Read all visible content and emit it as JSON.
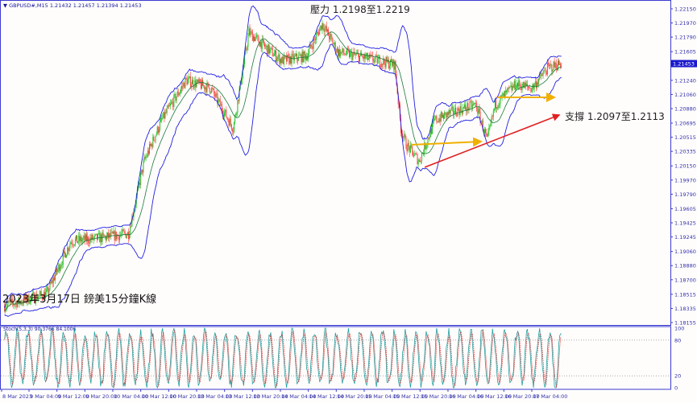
{
  "header": {
    "symbol": "GBPUSD#,M15",
    "ohlc": "1.21432 1.21457 1.21394 1.21453"
  },
  "title": "2023年3月17日 鎊美15分鐘K線",
  "annotations": {
    "resistance": "壓力 1.2198至1.2219",
    "support": "支撐 1.2097至1.2113"
  },
  "colors": {
    "bands": "#2020e0",
    "ma": "#1a7a3a",
    "up": "#20c020",
    "down": "#ff4040",
    "arrow_support": "#e02020",
    "arrow_level": "#f0b000",
    "stoch_main": "#20a0a0",
    "stoch_signal": "#e03030"
  },
  "chart_data": [
    {
      "type": "candlestick",
      "indicators": [
        "bollinger-bands",
        "moving-average"
      ],
      "y_ticks": [
        "1.22150",
        "1.21970",
        "1.21790",
        "1.21605",
        "1.21240",
        "1.21060",
        "1.20880",
        "1.20695",
        "1.20515",
        "1.20335",
        "1.20150",
        "1.19970",
        "1.19790",
        "1.19605",
        "1.19425",
        "1.19245",
        "1.19060",
        "1.18880",
        "1.18700",
        "1.18515",
        "1.18335",
        "1.18155"
      ],
      "ylim": [
        1.18155,
        1.2215
      ],
      "current_price": "1.21453",
      "x_ticks": [
        "8 Mar 2023",
        "9 Mar 04:00",
        "9 Mar 12:00",
        "9 Mar 20:00",
        "10 Mar 04:00",
        "10 Mar 12:00",
        "10 Mar 20:00",
        "13 Mar 04:00",
        "13 Mar 12:00",
        "13 Mar 20:00",
        "14 Mar 04:00",
        "14 Mar 12:00",
        "14 Mar 20:00",
        "15 Mar 04:00",
        "15 Mar 12:00",
        "15 Mar 20:00",
        "16 Mar 04:00",
        "16 Mar 12:00",
        "16 Mar 20:00",
        "17 Mar 04:00"
      ],
      "price_path": [
        {
          "time": "8 Mar 21:00",
          "price": 1.1837
        },
        {
          "time": "9 Mar 09:00",
          "price": 1.1852
        },
        {
          "time": "9 Mar 16:00",
          "price": 1.1919
        },
        {
          "time": "10 Mar 02:00",
          "price": 1.1924
        },
        {
          "time": "10 Mar 08:30",
          "price": 1.1929
        },
        {
          "time": "10 Mar 13:00",
          "price": 1.2021
        },
        {
          "time": "10 Mar 18:00",
          "price": 1.2073
        },
        {
          "time": "13 Mar 01:00",
          "price": 1.2124
        },
        {
          "time": "13 Mar 08:00",
          "price": 1.2114
        },
        {
          "time": "13 Mar 14:30",
          "price": 1.2063
        },
        {
          "time": "13 Mar 19:00",
          "price": 1.2185
        },
        {
          "time": "14 Mar 00:00",
          "price": 1.2165
        },
        {
          "time": "14 Mar 04:30",
          "price": 1.2149
        },
        {
          "time": "14 Mar 11:30",
          "price": 1.2155
        },
        {
          "time": "14 Mar 16:00",
          "price": 1.2196
        },
        {
          "time": "14 Mar 20:30",
          "price": 1.216
        },
        {
          "time": "15 Mar 08:00",
          "price": 1.2149
        },
        {
          "time": "15 Mar 12:45",
          "price": 1.2144
        },
        {
          "time": "15 Mar 14:30",
          "price": 1.2063
        },
        {
          "time": "15 Mar 16:00",
          "price": 1.2042
        },
        {
          "time": "15 Mar 19:45",
          "price": 1.2021
        },
        {
          "time": "16 Mar 00:15",
          "price": 1.2073
        },
        {
          "time": "16 Mar 05:00",
          "price": 1.2083
        },
        {
          "time": "16 Mar 12:00",
          "price": 1.2093
        },
        {
          "time": "16 Mar 15:15",
          "price": 1.2047
        },
        {
          "time": "16 Mar 17:30",
          "price": 1.2093
        },
        {
          "time": "16 Mar 23:30",
          "price": 1.2119
        },
        {
          "time": "17 Mar 04:00",
          "price": 1.2114
        },
        {
          "time": "17 Mar 08:30",
          "price": 1.2139
        },
        {
          "time": "17 Mar 12:30",
          "price": 1.2146
        }
      ]
    },
    {
      "type": "line",
      "label": "Stoch(5,3,3) 90.3766 84.1006",
      "series": [
        {
          "name": "Stoch main",
          "last": 90.3766
        },
        {
          "name": "Stoch signal",
          "last": 84.1006
        }
      ],
      "ylim": [
        0,
        100
      ],
      "y_ticks": [
        "100",
        "80",
        "20",
        "0"
      ],
      "levels": [
        80,
        20
      ]
    }
  ]
}
